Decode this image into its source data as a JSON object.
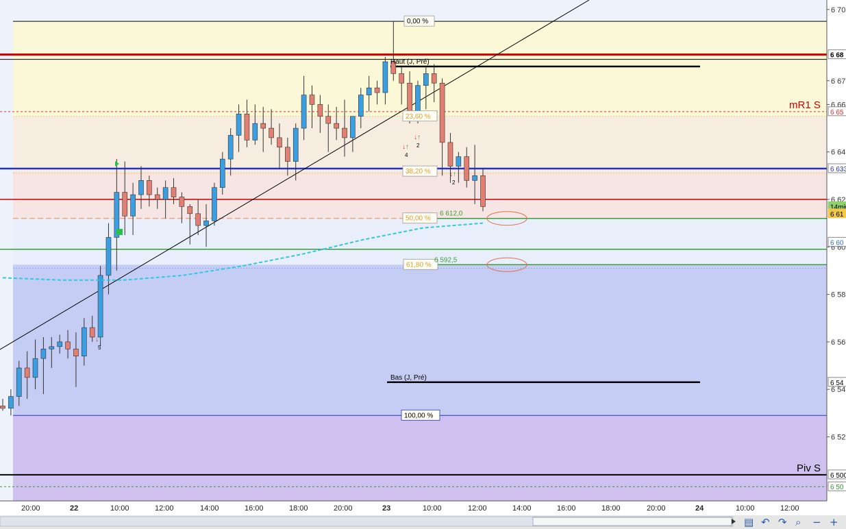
{
  "chart_data": {
    "type": "candlestick",
    "instrument_timeframe": "14min",
    "y_range": [
      6493,
      6704
    ],
    "x_axis_ticks": [
      "20:00",
      "22",
      "10:00",
      "12:00",
      "14:00",
      "16:00",
      "18:00",
      "20:00",
      "23",
      "10:00",
      "12:00",
      "14:00",
      "16:00",
      "18:00",
      "20:00",
      "24",
      "10:00",
      "12:00"
    ],
    "y_axis_ticks": [
      "6 70",
      "6 67",
      "6 66",
      "6 64",
      "6 62",
      "6 60",
      "6 58",
      "6 56",
      "6 54",
      "6 52"
    ],
    "price_tags": [
      {
        "label": "6 68",
        "value": 6681,
        "bg": "#ffffff",
        "color": "#000000",
        "bold": true
      },
      {
        "label": "6 65",
        "value": 6657,
        "bg": "#ffffff",
        "color": "#e03030",
        "bold": false
      },
      {
        "label": "6 633",
        "value": 6633,
        "bg": "#ffffff",
        "color": "#2233cc",
        "bold": false
      },
      {
        "label": "14min",
        "value": 6617,
        "bg": "#8fd16a",
        "color": "#000000",
        "bold": false
      },
      {
        "label": "6 61",
        "value": 6614,
        "bg": "#f2c84b",
        "color": "#000000",
        "bold": false
      },
      {
        "label": "6 60",
        "value": 6602,
        "bg": "#ffffff",
        "color": "#2a6fd6",
        "bold": false
      },
      {
        "label": "6 54",
        "value": 6543,
        "bg": "#ffffff",
        "color": "#000000",
        "bold": false
      },
      {
        "label": "6 500",
        "value": 6504,
        "bg": "#ffffff",
        "color": "#000000",
        "bold": false
      },
      {
        "label": "6 50",
        "value": 6499,
        "bg": "#ffffff",
        "color": "#3a8f3a",
        "bold": false
      }
    ],
    "fibonacci_levels": [
      {
        "label": "0,00 %",
        "value": 6695
      },
      {
        "label": "23,60 %",
        "value": 6655
      },
      {
        "label": "38,20 %",
        "value": 6631.8
      },
      {
        "label": "50,00 %",
        "value": 6612
      },
      {
        "label": "61,80 %",
        "value": 6592.5
      },
      {
        "label": "100,00 %",
        "value": 6529
      }
    ],
    "price_labels": [
      {
        "text": "6 612,0",
        "value": 6612
      },
      {
        "text": "6 592,5",
        "value": 6592.5
      }
    ],
    "level_labels": [
      {
        "text": "Haut (J, Pré)",
        "value": 6676
      },
      {
        "text": "Bas (J, Pré)",
        "value": 6543
      }
    ],
    "pivot_labels": [
      {
        "text": "mR1 S",
        "value": 6657
      },
      {
        "text": "Piv S",
        "value": 6504
      }
    ],
    "signal_numbers": [
      "4",
      "2",
      "2",
      "5"
    ],
    "colors": {
      "bull": "#3a9ee0",
      "bear": "#e07f72",
      "pivot_line": "#cc0000",
      "blue_line": "#2233cc",
      "green_line": "#3a9e3a",
      "ma_line": "#2ec8e0",
      "trendline": "#000000"
    },
    "candles": [
      [
        6533,
        6536,
        6531,
        6532
      ],
      [
        6532,
        6540,
        6529,
        6537
      ],
      [
        6537,
        6552,
        6533,
        6549
      ],
      [
        6549,
        6556,
        6536,
        6545
      ],
      [
        6545,
        6561,
        6540,
        6553
      ],
      [
        6553,
        6562,
        6538,
        6557
      ],
      [
        6557,
        6562,
        6549,
        6558
      ],
      [
        6558,
        6563,
        6555,
        6560
      ],
      [
        6560,
        6565,
        6553,
        6557
      ],
      [
        6557,
        6564,
        6541,
        6554
      ],
      [
        6554,
        6570,
        6550,
        6566
      ],
      [
        6566,
        6571,
        6560,
        6562
      ],
      [
        6562,
        6592,
        6558,
        6588
      ],
      [
        6588,
        6610,
        6580,
        6604
      ],
      [
        6604,
        6637,
        6590,
        6623
      ],
      [
        6623,
        6636,
        6605,
        6613
      ],
      [
        6613,
        6627,
        6605,
        6622
      ],
      [
        6622,
        6634,
        6616,
        6628
      ],
      [
        6628,
        6630,
        6617,
        6622
      ],
      [
        6622,
        6625,
        6616,
        6620
      ],
      [
        6620,
        6628,
        6612,
        6625
      ],
      [
        6625,
        6629,
        6618,
        6621
      ],
      [
        6621,
        6623,
        6610,
        6617
      ],
      [
        6617,
        6618,
        6601,
        6614
      ],
      [
        6614,
        6620,
        6605,
        6609
      ],
      [
        6609,
        6618,
        6600,
        6611
      ],
      [
        6611,
        6627,
        6609,
        6625
      ],
      [
        6625,
        6640,
        6622,
        6637
      ],
      [
        6637,
        6650,
        6630,
        6647
      ],
      [
        6647,
        6660,
        6640,
        6656
      ],
      [
        6656,
        6662,
        6642,
        6645
      ],
      [
        6645,
        6660,
        6643,
        6652
      ],
      [
        6652,
        6659,
        6640,
        6650
      ],
      [
        6650,
        6658,
        6643,
        6646
      ],
      [
        6646,
        6652,
        6633,
        6642
      ],
      [
        6642,
        6646,
        6630,
        6636
      ],
      [
        6636,
        6652,
        6628,
        6650
      ],
      [
        6650,
        6672,
        6645,
        6664
      ],
      [
        6664,
        6668,
        6650,
        6660
      ],
      [
        6660,
        6664,
        6648,
        6655
      ],
      [
        6655,
        6660,
        6640,
        6652
      ],
      [
        6652,
        6659,
        6645,
        6650
      ],
      [
        6650,
        6662,
        6638,
        6646
      ],
      [
        6646,
        6655,
        6640,
        6655
      ],
      [
        6655,
        6667,
        6650,
        6664
      ],
      [
        6664,
        6672,
        6657,
        6667
      ],
      [
        6667,
        6670,
        6660,
        6665
      ],
      [
        6665,
        6680,
        6660,
        6678
      ],
      [
        6678,
        6695,
        6670,
        6673
      ],
      [
        6673,
        6676,
        6660,
        6669
      ],
      [
        6669,
        6674,
        6652,
        6657
      ],
      [
        6657,
        6670,
        6652,
        6668
      ],
      [
        6668,
        6676,
        6658,
        6673
      ],
      [
        6673,
        6677,
        6661,
        6669
      ],
      [
        6669,
        6671,
        6630,
        6644
      ],
      [
        6644,
        6648,
        6627,
        6634
      ],
      [
        6634,
        6640,
        6627,
        6638
      ],
      [
        6638,
        6642,
        6625,
        6628
      ],
      [
        6628,
        6643,
        6618,
        6630
      ],
      [
        6630,
        6633,
        6615,
        6617
      ]
    ],
    "moving_average": [
      [
        0,
        6587
      ],
      [
        10,
        6586
      ],
      [
        20,
        6586
      ],
      [
        30,
        6588
      ],
      [
        40,
        6592
      ],
      [
        50,
        6597
      ],
      [
        60,
        6603
      ],
      [
        70,
        6608
      ],
      [
        80,
        6610
      ]
    ]
  },
  "toolbar": {
    "icons": [
      "save-icon",
      "undo-icon",
      "redo-icon",
      "zoom-fit-icon",
      "zoom-out-icon",
      "zoom-in-icon"
    ]
  }
}
